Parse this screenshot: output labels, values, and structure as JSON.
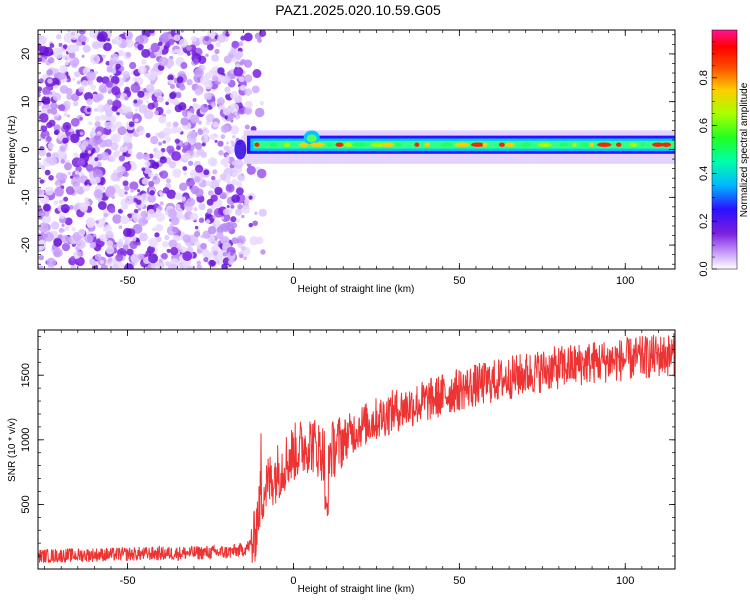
{
  "title": "PAZ1.2025.020.10.59.G05",
  "colors": {
    "snr_line": "#ee3333",
    "scatter_purple": "#7a1fe0"
  },
  "chart_data": [
    {
      "type": "heatmap",
      "xlabel": "Height of straight line (km)",
      "ylabel": "Frequency (Hz)",
      "xlim": [
        -77,
        115
      ],
      "ylim": [
        -25,
        25
      ],
      "xticks": [
        -50,
        0,
        50,
        100
      ],
      "yticks": [
        -20,
        -10,
        0,
        10,
        20
      ],
      "colorbar": {
        "label": "Normalized spectral amplitude",
        "range": [
          0,
          1
        ],
        "ticks": [
          "0.0",
          "0.2",
          "0.4",
          "0.6",
          "0.8"
        ],
        "colormap": "rainbow (white–purple–blue–cyan–green–yellow–red–magenta)"
      },
      "features": {
        "noise_region_x": [
          -77,
          -15
        ],
        "signal_band_x": [
          -15,
          115
        ],
        "signal_center_frequency": 1
      }
    },
    {
      "type": "line",
      "xlabel": "Height of straight line (km)",
      "ylabel": "SNR (10 * v/v)",
      "xlim": [
        -77,
        115
      ],
      "ylim": [
        0,
        1850
      ],
      "xticks": [
        -50,
        0,
        50,
        100
      ],
      "yticks": [
        500,
        1000,
        1500
      ],
      "series": [
        {
          "x": [
            -77,
            -60,
            -40,
            -20,
            -15,
            -12,
            -10,
            -8,
            -5,
            0,
            5,
            10,
            15,
            20,
            30,
            40,
            50,
            60,
            70,
            80,
            90,
            100,
            110,
            115
          ],
          "values": [
            100,
            110,
            120,
            130,
            150,
            200,
            550,
            650,
            750,
            900,
            980,
            880,
            1000,
            1100,
            1220,
            1300,
            1390,
            1450,
            1510,
            1560,
            1600,
            1620,
            1650,
            1660
          ]
        }
      ]
    }
  ]
}
